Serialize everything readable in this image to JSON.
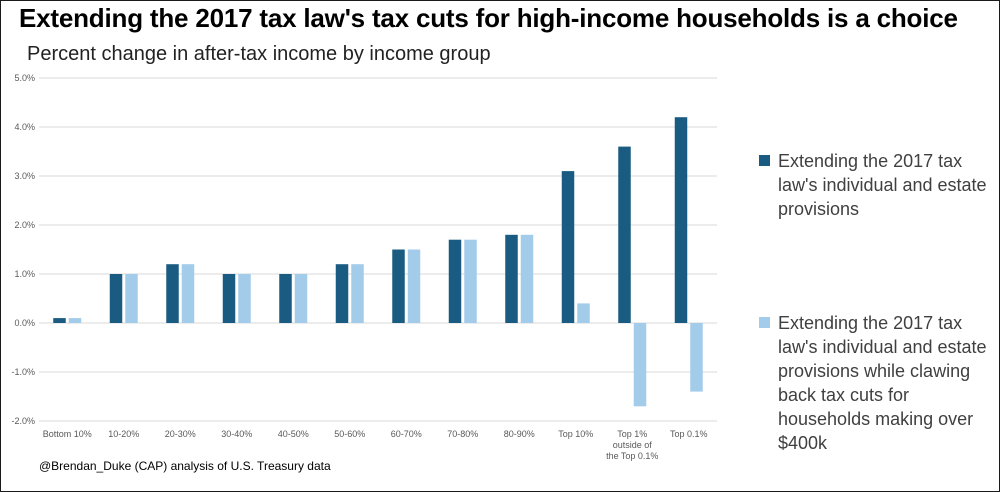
{
  "title": "Extending the 2017 tax law's tax cuts for high-income households is a choice",
  "subtitle": "Percent change in after-tax income by income group",
  "source": "@Brendan_Duke (CAP) analysis of U.S. Treasury data",
  "colors": {
    "series1": "#1a5c81",
    "series2": "#a3cbea",
    "grid": "#d9d9d9",
    "axis_text": "#595959"
  },
  "legend": [
    {
      "name": "Extending the 2017 tax law's individual and estate provisions"
    },
    {
      "name": "Extending the 2017 tax law's individual and estate provisions while clawing back tax cuts for households making over $400k"
    }
  ],
  "chart_data": {
    "type": "bar",
    "title": "Percent change in after-tax income by income group",
    "xlabel": "",
    "ylabel": "",
    "ylim": [
      -2.0,
      5.0
    ],
    "yticks": [
      "5.0%",
      "4.0%",
      "3.0%",
      "2.0%",
      "1.0%",
      "0.0%",
      "-1.0%",
      "-2.0%"
    ],
    "ytick_values": [
      5.0,
      4.0,
      3.0,
      2.0,
      1.0,
      0.0,
      -1.0,
      -2.0
    ],
    "categories": [
      "Bottom 10%",
      "10-20%",
      "20-30%",
      "30-40%",
      "40-50%",
      "50-60%",
      "60-70%",
      "70-80%",
      "80-90%",
      "Top 10%",
      "Top 1% outside of the Top 0.1%",
      "Top 0.1%"
    ],
    "category_lines": [
      [
        "Bottom 10%"
      ],
      [
        "10-20%"
      ],
      [
        "20-30%"
      ],
      [
        "30-40%"
      ],
      [
        "40-50%"
      ],
      [
        "50-60%"
      ],
      [
        "60-70%"
      ],
      [
        "70-80%"
      ],
      [
        "80-90%"
      ],
      [
        "Top 10%"
      ],
      [
        "Top 1%",
        "outside of",
        "the Top 0.1%"
      ],
      [
        "Top 0.1%"
      ]
    ],
    "series": [
      {
        "name": "Extending the 2017 tax law's individual and estate provisions",
        "values": [
          0.1,
          1.0,
          1.2,
          1.0,
          1.0,
          1.2,
          1.5,
          1.7,
          1.8,
          3.1,
          3.6,
          4.2
        ]
      },
      {
        "name": "Extending the 2017 tax law's individual and estate provisions while clawing back tax cuts for households making over $400k",
        "values": [
          0.1,
          1.0,
          1.2,
          1.0,
          1.0,
          1.2,
          1.5,
          1.7,
          1.8,
          0.4,
          -1.7,
          -1.4
        ]
      }
    ],
    "grid": true,
    "legend_position": "right"
  }
}
